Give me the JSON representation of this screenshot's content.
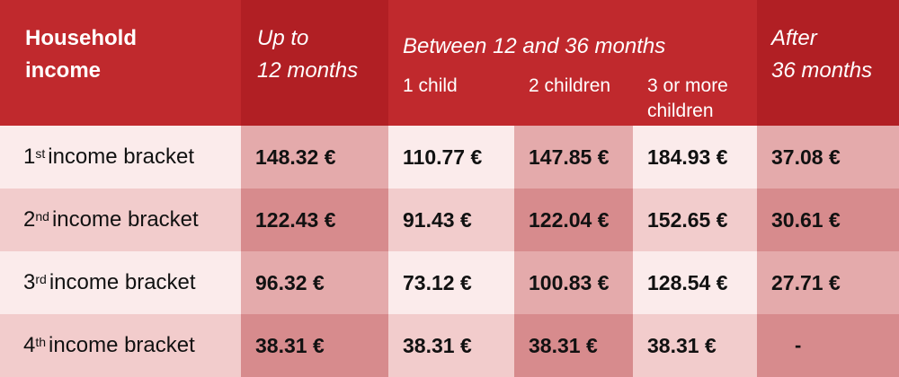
{
  "header": {
    "income_line1": "Household",
    "income_line2": "income",
    "upto_line1": "Up to",
    "upto_line2": "12 months",
    "between": "Between 12 and 36 months",
    "sub_1child": "1 child",
    "sub_2children": "2 children",
    "sub_3more_line1": "3 or more",
    "sub_3more_line2": "children",
    "after_line1": "After",
    "after_line2": "36 months"
  },
  "rows": [
    {
      "num": "1",
      "suffix": "st",
      "label": "income bracket",
      "upto": "148.32 €",
      "c1": "110.77 €",
      "c2": "147.85 €",
      "c3": "184.93 €",
      "after": "37.08 €"
    },
    {
      "num": "2",
      "suffix": "nd",
      "label": "income bracket",
      "upto": "122.43 €",
      "c1": "91.43 €",
      "c2": "122.04 €",
      "c3": "152.65 €",
      "after": "30.61 €"
    },
    {
      "num": "3",
      "suffix": "rd",
      "label": "income bracket",
      "upto": "96.32 €",
      "c1": "73.12 €",
      "c2": "100.83 €",
      "c3": "128.54 €",
      "after": "27.71 €"
    },
    {
      "num": "4",
      "suffix": "th",
      "label": "income bracket",
      "upto": "38.31 €",
      "c1": "38.31 €",
      "c2": "38.31 €",
      "c3": "38.31 €",
      "after": "-"
    }
  ],
  "colors": {
    "header_red": "#c0292d",
    "header_dark_red": "#b11f24"
  }
}
